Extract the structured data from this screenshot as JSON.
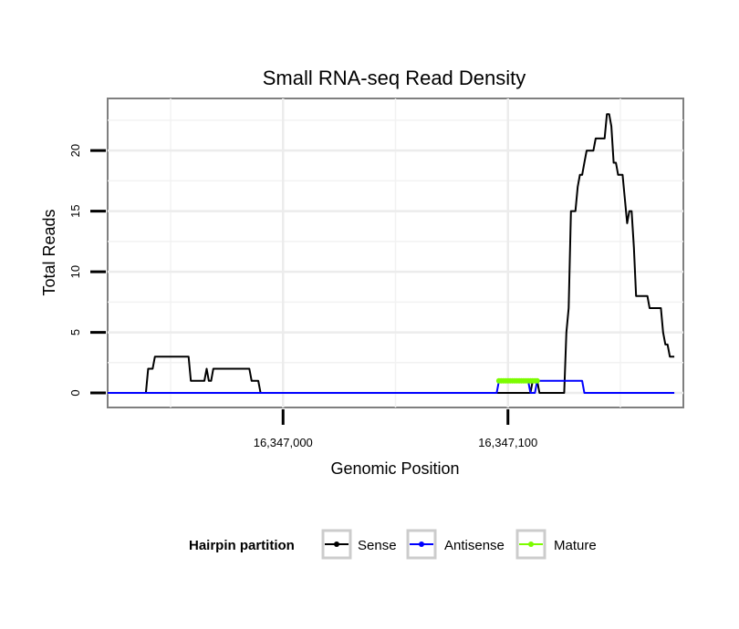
{
  "chart_data": {
    "type": "line",
    "title": "Small RNA-seq Read Density",
    "xlabel": "Genomic Position",
    "ylabel": "Total Reads",
    "xlim": [
      16346922,
      16347178
    ],
    "ylim": [
      -1.2,
      24.3
    ],
    "x_ticks": [
      16347000,
      16347100
    ],
    "x_tick_labels": [
      "16,347,000",
      "16,347,100"
    ],
    "y_ticks": [
      0,
      5,
      10,
      15,
      20
    ],
    "y_tick_labels": [
      "0",
      "5",
      "10",
      "15",
      "20"
    ],
    "grid": true,
    "legend": {
      "title": "Hairpin partition",
      "placement": "bottom",
      "entries": [
        "Sense",
        "Antisense",
        "Mature"
      ]
    },
    "series": [
      {
        "name": "Sense",
        "color": "#000000",
        "points": [
          [
            16346922,
            0
          ],
          [
            16346939,
            0
          ],
          [
            16346940,
            2
          ],
          [
            16346942,
            2
          ],
          [
            16346943,
            3
          ],
          [
            16346958,
            3
          ],
          [
            16346959,
            1
          ],
          [
            16346965,
            1
          ],
          [
            16346966,
            2
          ],
          [
            16346967,
            1
          ],
          [
            16346968,
            1
          ],
          [
            16346969,
            2
          ],
          [
            16346985,
            2
          ],
          [
            16346986,
            1
          ],
          [
            16346989,
            1
          ],
          [
            16346990,
            0
          ],
          [
            16347110,
            0
          ],
          [
            16347111,
            1
          ],
          [
            16347113,
            1
          ],
          [
            16347114,
            0
          ],
          [
            16347125,
            0
          ],
          [
            16347126,
            5
          ],
          [
            16347127,
            7
          ],
          [
            16347128,
            15
          ],
          [
            16347130,
            15
          ],
          [
            16347131,
            17
          ],
          [
            16347132,
            18
          ],
          [
            16347133,
            18
          ],
          [
            16347134,
            19
          ],
          [
            16347135,
            20
          ],
          [
            16347138,
            20
          ],
          [
            16347139,
            21
          ],
          [
            16347143,
            21
          ],
          [
            16347144,
            23
          ],
          [
            16347145,
            23
          ],
          [
            16347146,
            22
          ],
          [
            16347147,
            19
          ],
          [
            16347148,
            19
          ],
          [
            16347149,
            18
          ],
          [
            16347151,
            18
          ],
          [
            16347152,
            16
          ],
          [
            16347153,
            14
          ],
          [
            16347154,
            15
          ],
          [
            16347155,
            15
          ],
          [
            16347156,
            12
          ],
          [
            16347157,
            8
          ],
          [
            16347162,
            8
          ],
          [
            16347163,
            7
          ],
          [
            16347168,
            7
          ],
          [
            16347169,
            5
          ],
          [
            16347170,
            4
          ],
          [
            16347171,
            4
          ],
          [
            16347172,
            3
          ],
          [
            16347174,
            3
          ]
        ]
      },
      {
        "name": "Antisense",
        "color": "#0000ff",
        "points": [
          [
            16346922,
            0
          ],
          [
            16347095,
            0
          ],
          [
            16347096,
            1
          ],
          [
            16347109,
            1
          ],
          [
            16347110,
            0
          ],
          [
            16347112,
            0
          ],
          [
            16347113,
            1
          ],
          [
            16347133,
            1
          ],
          [
            16347134,
            0
          ],
          [
            16347174,
            0
          ]
        ]
      },
      {
        "name": "Mature",
        "color": "#7cfc00",
        "points": [
          [
            16347096,
            1
          ],
          [
            16347097,
            1
          ],
          [
            16347098,
            1
          ],
          [
            16347099,
            1
          ],
          [
            16347100,
            1
          ],
          [
            16347101,
            1
          ],
          [
            16347102,
            1
          ],
          [
            16347103,
            1
          ],
          [
            16347104,
            1
          ],
          [
            16347105,
            1
          ],
          [
            16347106,
            1
          ],
          [
            16347107,
            1
          ],
          [
            16347108,
            1
          ],
          [
            16347109,
            1
          ],
          [
            16347110,
            1
          ],
          [
            16347111,
            1
          ],
          [
            16347112,
            1
          ],
          [
            16347113,
            1
          ]
        ]
      }
    ]
  }
}
